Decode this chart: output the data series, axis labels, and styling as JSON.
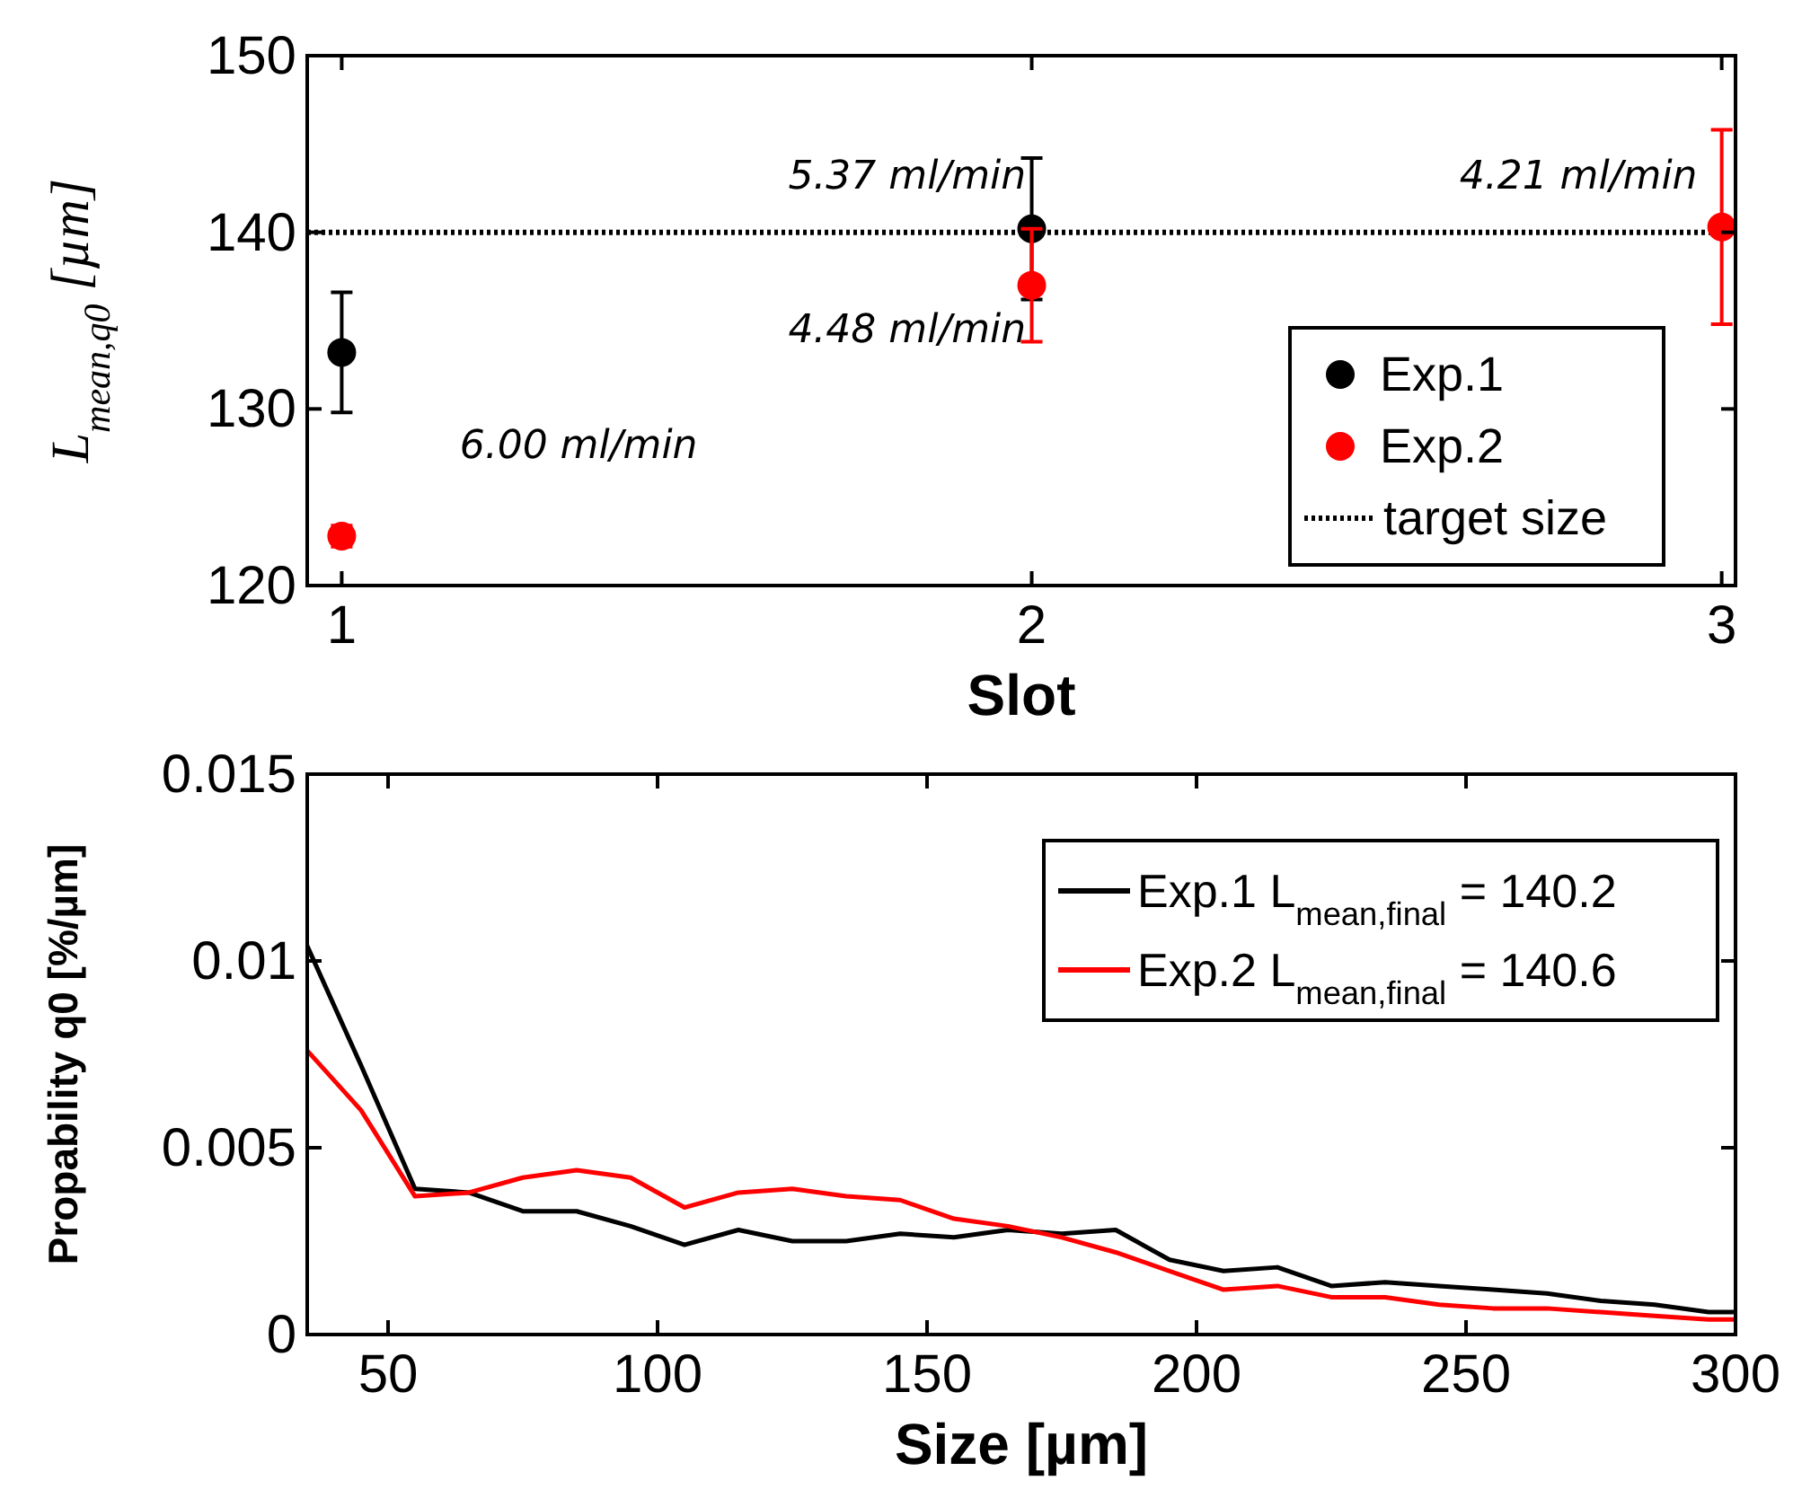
{
  "chart_data": [
    {
      "type": "scatter",
      "xlabel": "Slot",
      "ylabel": "L$_{mean,q0}$ [µm]",
      "xlim": [
        0.95,
        3.02
      ],
      "xticks": [
        1,
        2,
        3
      ],
      "ylim": [
        120,
        150
      ],
      "yticks": [
        120,
        130,
        140,
        150
      ],
      "grid": false,
      "legend": "right",
      "marker": "circle",
      "series": [
        {
          "name": "Exp.1",
          "color": "#000000",
          "x": [
            1,
            2
          ],
          "values": [
            133.2,
            140.2
          ],
          "errors": [
            3.4,
            4
          ]
        },
        {
          "name": "Exp.2",
          "color": "#ff0000",
          "x": [
            1,
            2,
            3
          ],
          "values": [
            122.8,
            137,
            140.3
          ],
          "errors": [
            0.6,
            3.2,
            5.5
          ]
        }
      ],
      "ref_lines": [
        {
          "axis": "y",
          "value": 140,
          "label": "target size",
          "color": "#000000",
          "line_style": "dotted"
        }
      ],
      "annotations": [
        "6.00 ml/min",
        "5.37 ml/min",
        "4.48 ml/min",
        "4.21 ml/min"
      ]
    },
    {
      "type": "line",
      "xlabel": "Size [µm]",
      "ylabel": "Propability q0 [%/µm]",
      "xlim": [
        35,
        300
      ],
      "xticks": [
        50,
        100,
        150,
        200,
        250,
        300
      ],
      "ylim": [
        0,
        0.015
      ],
      "yticks": [
        0,
        0.005,
        0.01,
        0.015
      ],
      "grid": false,
      "legend": "top right",
      "line_style": "solid",
      "x": [
        35,
        45,
        55,
        65,
        75,
        85,
        95,
        105,
        115,
        125,
        135,
        145,
        155,
        165,
        175,
        185,
        195,
        205,
        215,
        225,
        235,
        245,
        255,
        265,
        275,
        285,
        295,
        300
      ],
      "series": [
        {
          "name": "Exp.1 L$_{mean,final}$ = 140.2",
          "color": "#000000",
          "values": [
            0.0104,
            0.0072,
            0.0039,
            0.0038,
            0.0033,
            0.0033,
            0.0029,
            0.0024,
            0.0028,
            0.0025,
            0.0025,
            0.0027,
            0.0026,
            0.0028,
            0.0027,
            0.0028,
            0.002,
            0.0017,
            0.0018,
            0.0013,
            0.0014,
            0.0013,
            0.0012,
            0.0011,
            0.0009,
            0.0008,
            0.0006,
            0.0006
          ]
        },
        {
          "name": "Exp.2 L$_{mean,final}$ = 140.6",
          "color": "#ff0000",
          "values": [
            0.0076,
            0.006,
            0.0037,
            0.0038,
            0.0042,
            0.0044,
            0.0042,
            0.0034,
            0.0038,
            0.0039,
            0.0037,
            0.0036,
            0.0031,
            0.0029,
            0.0026,
            0.0022,
            0.0017,
            0.0012,
            0.0013,
            0.001,
            0.001,
            0.0008,
            0.0007,
            0.0007,
            0.0006,
            0.0005,
            0.0004,
            0.0004
          ]
        }
      ]
    }
  ]
}
